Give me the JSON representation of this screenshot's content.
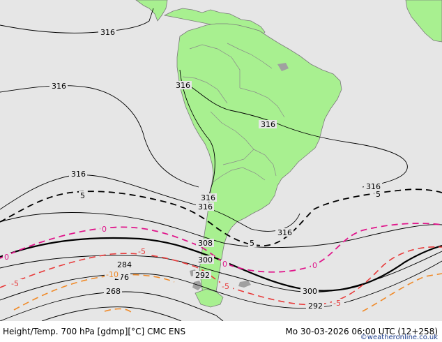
{
  "footer": {
    "title": "Height/Temp. 700 hPa [gdmp][°C] CMC ENS",
    "datetime": "Mo 30-03-2026 06:00 UTC (12+258)"
  },
  "credit": "©weatheronline.co.uk",
  "map": {
    "colors": {
      "land": "#a8f090",
      "ocean": "#e6e6e6",
      "temp_0": "#e0158a",
      "temp_minus5": "#e83a3a",
      "temp_minus10": "#f08a28",
      "temp_5": "#000000"
    },
    "height_labels": [
      "316",
      "316",
      "316",
      "316",
      "316",
      "316",
      "316",
      "316",
      "316",
      "308",
      "300",
      "300",
      "292",
      "292",
      "284",
      "276",
      "268"
    ],
    "temp_labels": [
      "5",
      "5",
      "5",
      "0",
      "0",
      "0",
      "0",
      "-5",
      "-5",
      "-5",
      "-5",
      "-10"
    ]
  }
}
